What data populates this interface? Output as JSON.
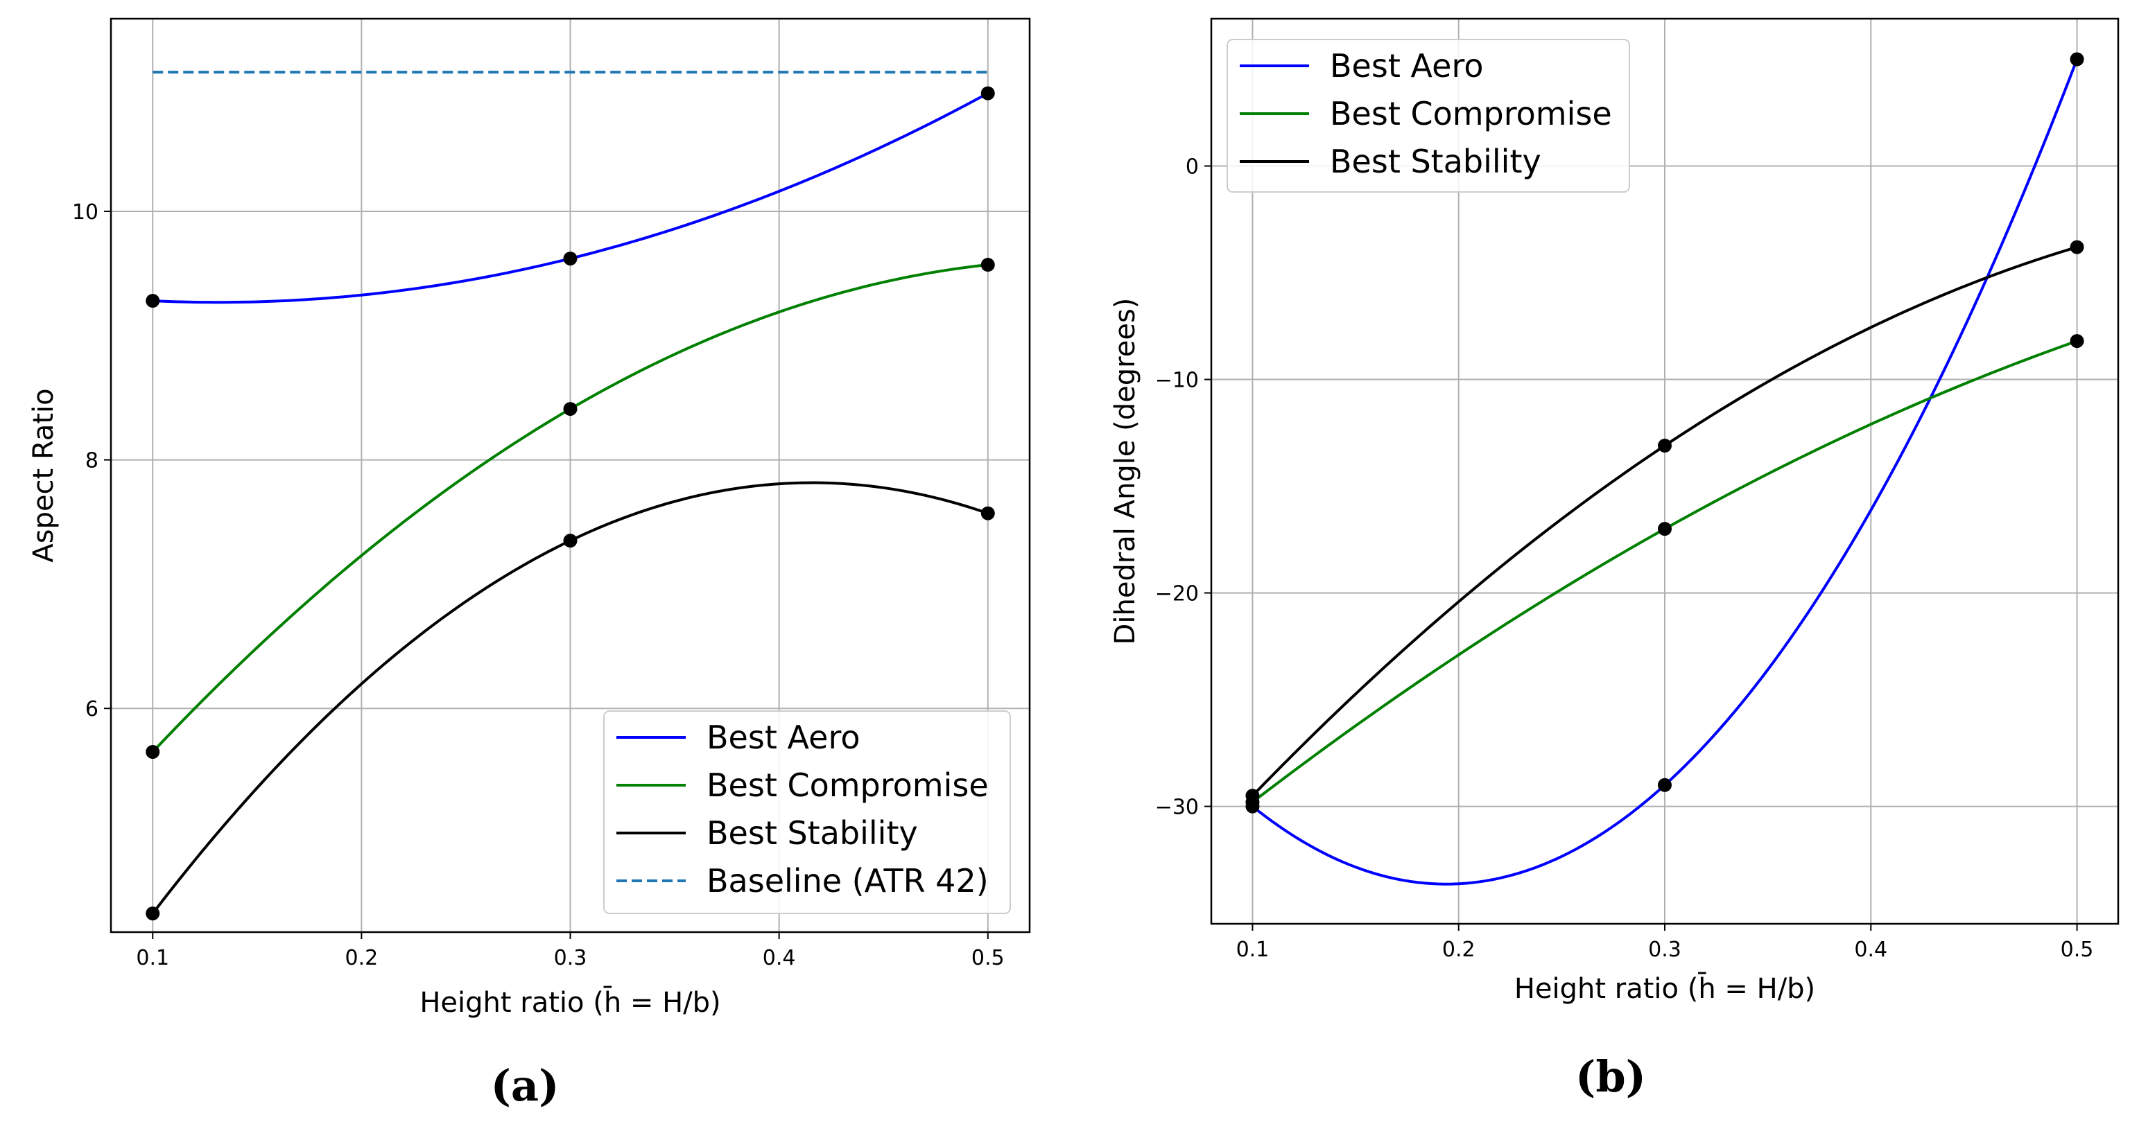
{
  "chart_data": [
    {
      "type": "line",
      "panel": "(a)",
      "xlabel": "Height ratio (h̄ = H/b)",
      "ylabel": "Aspect Ratio",
      "xlim": [
        0.08,
        0.52
      ],
      "ylim": [
        4.2,
        11.55
      ],
      "xticks": [
        0.1,
        0.2,
        0.3,
        0.4,
        0.5
      ],
      "xtick_labels": [
        "0.1",
        "0.2",
        "0.3",
        "0.4",
        "0.5"
      ],
      "yticks": [
        6,
        8,
        10
      ],
      "ytick_labels": [
        "6",
        "8",
        "10"
      ],
      "grid": true,
      "legend_position": "lower-right",
      "x": [
        0.1,
        0.3,
        0.5
      ],
      "series": [
        {
          "name": "Best Aero",
          "color": "#0000ff",
          "values": [
            9.28,
            9.62,
            10.95
          ]
        },
        {
          "name": "Best Compromise",
          "color": "#008000",
          "values": [
            5.65,
            8.41,
            9.57
          ]
        },
        {
          "name": "Best Stability",
          "color": "#000000",
          "values": [
            4.35,
            7.35,
            7.57
          ]
        }
      ],
      "reference_lines": [
        {
          "name": "Baseline (ATR 42)",
          "color": "#1f77b4",
          "style": "dashed",
          "value": 11.12
        }
      ]
    },
    {
      "type": "line",
      "panel": "(b)",
      "xlabel": "Height ratio (h̄ = H/b)",
      "ylabel": "Dihedral Angle (degrees)",
      "xlim": [
        0.08,
        0.52
      ],
      "ylim": [
        -35.5,
        6.9
      ],
      "xticks": [
        0.1,
        0.2,
        0.3,
        0.4,
        0.5
      ],
      "xtick_labels": [
        "0.1",
        "0.2",
        "0.3",
        "0.4",
        "0.5"
      ],
      "yticks": [
        -30,
        -20,
        -10,
        0
      ],
      "ytick_labels": [
        "−30",
        "−20",
        "−10",
        "0"
      ],
      "grid": true,
      "legend_position": "top-left",
      "x": [
        0.1,
        0.3,
        0.5
      ],
      "series": [
        {
          "name": "Best Aero",
          "color": "#0000ff",
          "values": [
            -30.0,
            -29.0,
            5.0
          ]
        },
        {
          "name": "Best Compromise",
          "color": "#008000",
          "values": [
            -29.8,
            -17.0,
            -8.2
          ]
        },
        {
          "name": "Best Stability",
          "color": "#000000",
          "values": [
            -29.5,
            -13.1,
            -3.8
          ]
        }
      ],
      "reference_lines": []
    }
  ],
  "captions": [
    "(a)",
    "(b)"
  ]
}
